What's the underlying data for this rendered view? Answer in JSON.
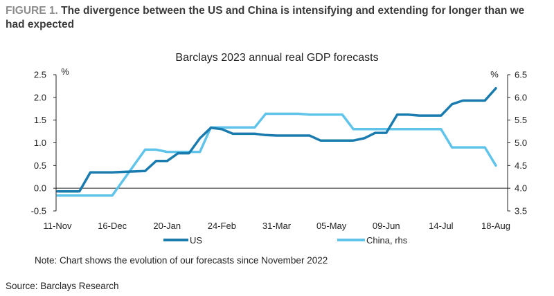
{
  "header": {
    "figure_label": "FIGURE 1.",
    "figure_title": "The divergence between the US and China is intensifying and extending for longer than we had expected"
  },
  "note": "Note: Chart shows the evolution of our forecasts since November 2022",
  "source": "Source: Barclays Research",
  "chart_data": {
    "type": "line",
    "title": "Barclays 2023 annual real GDP forecasts",
    "x_tick_labels": [
      "11-Nov",
      "16-Dec",
      "20-Jan",
      "24-Feb",
      "31-Mar",
      "05-May",
      "09-Jun",
      "14-Jul",
      "18-Aug"
    ],
    "left_axis": {
      "unit": "%",
      "ylim": [
        -0.5,
        2.5
      ],
      "ticks": [
        "-0.5",
        "0.0",
        "0.5",
        "1.0",
        "1.5",
        "2.0",
        "2.5"
      ]
    },
    "right_axis": {
      "unit": "%",
      "ylim": [
        3.5,
        6.5
      ],
      "ticks": [
        "3.5",
        "4.0",
        "4.5",
        "5.0",
        "5.5",
        "6.0",
        "6.5"
      ]
    },
    "grid": false,
    "legend_position": "bottom",
    "series": [
      {
        "name": "US",
        "axis": "left",
        "color": "#1a7bae",
        "x": [
          "2022-11-11",
          "2022-11-25",
          "2022-12-02",
          "2022-12-16",
          "2022-12-23",
          "2022-12-30",
          "2023-01-06",
          "2023-01-13",
          "2023-01-20",
          "2023-01-27",
          "2023-02-03",
          "2023-02-10",
          "2023-02-17",
          "2023-02-24",
          "2023-03-03",
          "2023-03-10",
          "2023-03-17",
          "2023-03-24",
          "2023-03-31",
          "2023-04-14",
          "2023-04-21",
          "2023-04-28",
          "2023-05-05",
          "2023-05-12",
          "2023-05-19",
          "2023-05-26",
          "2023-06-02",
          "2023-06-09",
          "2023-06-16",
          "2023-06-23",
          "2023-06-30",
          "2023-07-07",
          "2023-07-14",
          "2023-07-21",
          "2023-07-28",
          "2023-08-04",
          "2023-08-11",
          "2023-08-18"
        ],
        "values": [
          -0.07,
          -0.07,
          0.35,
          0.35,
          0.36,
          0.37,
          0.38,
          0.6,
          0.6,
          0.77,
          0.77,
          1.1,
          1.33,
          1.3,
          1.2,
          1.2,
          1.2,
          1.17,
          1.16,
          1.16,
          1.16,
          1.05,
          1.05,
          1.05,
          1.05,
          1.1,
          1.22,
          1.22,
          1.62,
          1.62,
          1.6,
          1.6,
          1.6,
          1.85,
          1.93,
          1.93,
          1.93,
          2.2
        ]
      },
      {
        "name": "China, rhs",
        "axis": "right",
        "color": "#5fc3ea",
        "x": [
          "2022-11-11",
          "2022-11-25",
          "2022-12-09",
          "2022-12-16",
          "2023-01-06",
          "2023-01-13",
          "2023-01-20",
          "2023-01-27",
          "2023-02-10",
          "2023-02-17",
          "2023-03-03",
          "2023-03-17",
          "2023-03-24",
          "2023-04-14",
          "2023-04-21",
          "2023-05-12",
          "2023-05-19",
          "2023-06-02",
          "2023-06-23",
          "2023-07-07",
          "2023-07-14",
          "2023-07-21",
          "2023-08-11",
          "2023-08-18"
        ],
        "values": [
          3.84,
          3.84,
          3.84,
          3.84,
          4.85,
          4.85,
          4.8,
          4.8,
          4.8,
          5.34,
          5.34,
          5.34,
          5.64,
          5.64,
          5.62,
          5.62,
          5.3,
          5.3,
          5.3,
          5.3,
          5.3,
          4.9,
          4.9,
          4.5
        ]
      }
    ]
  }
}
